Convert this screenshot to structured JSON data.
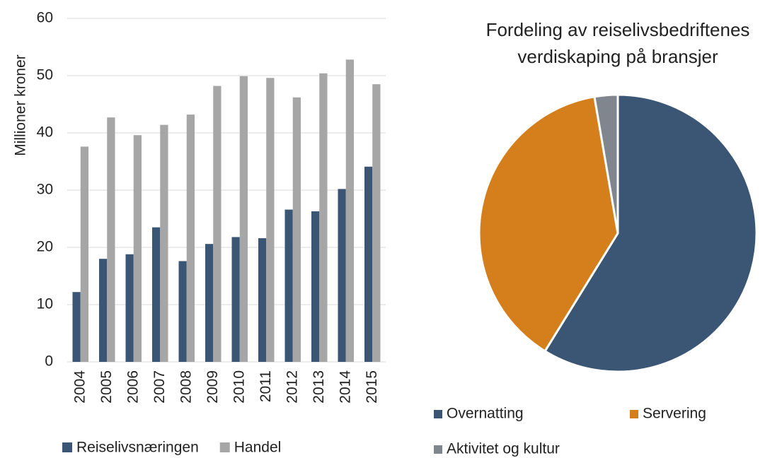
{
  "chart_data": [
    {
      "type": "bar",
      "y_label": "Millioner kroner",
      "categories": [
        "2004",
        "2005",
        "2006",
        "2007",
        "2008",
        "2009",
        "2010",
        "2011",
        "2012",
        "2013",
        "2014",
        "2015"
      ],
      "series": [
        {
          "name": "Reiselivsnæringen",
          "color": "#3b5675",
          "values": [
            12.2,
            18,
            18.8,
            23.5,
            17.6,
            20.6,
            21.8,
            21.6,
            26.6,
            26.3,
            30.2,
            34.1
          ]
        },
        {
          "name": "Handel",
          "color": "#a6a6a6",
          "values": [
            37.6,
            42.7,
            39.6,
            41.4,
            43.2,
            48.2,
            49.9,
            49.6,
            46.2,
            50.4,
            52.8,
            48.5
          ]
        }
      ],
      "ylim": [
        0,
        60
      ],
      "yticks": [
        0,
        10,
        20,
        30,
        40,
        50,
        60
      ],
      "grid": true,
      "legend": "bottom"
    },
    {
      "type": "pie",
      "title": [
        "Fordeling av reiselivsbedriftenes",
        "verdiskaping på bransjer"
      ],
      "categories": [
        "Overnatting",
        "Servering",
        "Aktivitet og kultur"
      ],
      "values": [
        58.8,
        38.5,
        2.7
      ],
      "colors": [
        "#3b5675",
        "#d57f1c",
        "#7f868e"
      ],
      "legend": "bottom"
    }
  ]
}
